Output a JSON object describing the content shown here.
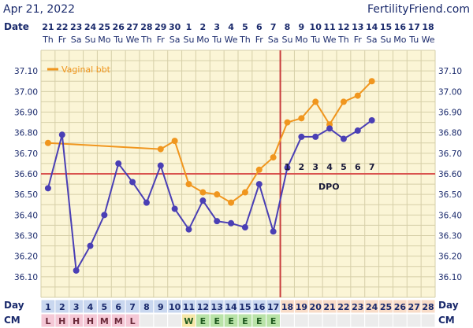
{
  "header": {
    "date": "Apr 21, 2022",
    "brand": "FertilityFriend.com",
    "date_row_label": "Date",
    "day_row_label": "Day",
    "cm_row_label": "CM",
    "dpo_label": "DPO"
  },
  "colors": {
    "background": "#fbf5d6",
    "grid": "#d6cfa8",
    "series_a": "#f0961e",
    "series_b": "#4a3fb5",
    "coverline": "#d9534f",
    "ovulation_line": "#c83c3c",
    "menstruation_cell": "#f5c8d6",
    "egg_white_cell": "#b9e3a8",
    "creamy_cell": "#f6e7a8",
    "day_pre": "#c9d7ef",
    "day_post": "#f8dcc8"
  },
  "chart_data": {
    "type": "line",
    "title": "",
    "xlabel": "Day",
    "ylabel": "",
    "ylim": [
      36.0,
      37.2
    ],
    "yticks": [
      "36.10",
      "36.20",
      "36.30",
      "36.40",
      "36.50",
      "36.60",
      "36.70",
      "36.80",
      "36.90",
      "37.00",
      "37.10"
    ],
    "dates": [
      "21",
      "22",
      "23",
      "24",
      "25",
      "26",
      "27",
      "28",
      "29",
      "30",
      "1",
      "2",
      "3",
      "4",
      "5",
      "6",
      "7",
      "8",
      "9",
      "10",
      "11",
      "12",
      "13",
      "14",
      "15",
      "16",
      "17",
      "18"
    ],
    "weekdays": [
      "Th",
      "Fr",
      "Sa",
      "Su",
      "Mo",
      "Tu",
      "We",
      "Th",
      "Fr",
      "Sa",
      "Su",
      "Mo",
      "Tu",
      "We",
      "Th",
      "Fr",
      "Sa",
      "Su",
      "Mo",
      "Tu",
      "We",
      "Th",
      "Fr",
      "Sa",
      "Su",
      "Mo",
      "Tu",
      "We"
    ],
    "days": [
      "1",
      "2",
      "3",
      "4",
      "5",
      "6",
      "7",
      "8",
      "9",
      "10",
      "11",
      "12",
      "13",
      "14",
      "15",
      "16",
      "17",
      "18",
      "19",
      "20",
      "21",
      "22",
      "23",
      "24",
      "25",
      "26",
      "27",
      "28"
    ],
    "series": [
      {
        "name": "Vaginal bbt",
        "color": "#f0961e",
        "values": [
          36.75,
          null,
          null,
          null,
          null,
          null,
          null,
          null,
          36.72,
          36.76,
          36.55,
          36.51,
          36.5,
          36.46,
          36.51,
          36.62,
          36.68,
          36.85,
          36.87,
          36.95,
          36.84,
          36.95,
          36.98,
          37.05,
          null,
          null,
          null,
          null
        ]
      },
      {
        "name": "",
        "color": "#4a3fb5",
        "values": [
          36.53,
          36.79,
          36.13,
          36.25,
          36.4,
          36.65,
          36.56,
          36.46,
          36.64,
          36.43,
          36.33,
          36.47,
          36.37,
          36.36,
          36.34,
          36.55,
          36.32,
          36.63,
          36.78,
          36.78,
          36.82,
          36.77,
          36.81,
          36.86,
          null,
          null,
          null,
          null
        ]
      }
    ],
    "coverline": 36.6,
    "ovulation_day": 17,
    "dpo": [
      "1",
      "2",
      "3",
      "4",
      "5",
      "6",
      "7"
    ],
    "cervical_mucus": [
      "L",
      "H",
      "H",
      "H",
      "M",
      "M",
      "L",
      "",
      "",
      "",
      "W",
      "E",
      "E",
      "E",
      "E",
      "E",
      "E",
      "",
      "",
      "",
      "",
      "",
      "",
      "",
      "",
      "",
      "",
      ""
    ]
  }
}
